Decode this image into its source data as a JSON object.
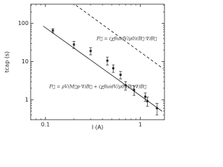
{
  "chart_data": {
    "type": "scatter",
    "x_label": "I (A)",
    "y_label": "tcap (s)",
    "xlim": [
      0.07,
      1.8
    ],
    "ylim": [
      0.3,
      320
    ],
    "xticks": [
      0.1,
      1
    ],
    "yticks": [
      1,
      10,
      100
    ],
    "log_x": true,
    "log_y": true,
    "series": [
      {
        "type": "scatter",
        "color": "#222222",
        "x": [
          0.12,
          0.2,
          0.3,
          0.45,
          0.52,
          0.62,
          0.7,
          0.86,
          1.13,
          1.19,
          1.5
        ],
        "values": [
          65,
          28,
          19,
          10.6,
          6.7,
          4.5,
          2.4,
          1.8,
          1.2,
          0.92,
          0.6
        ],
        "errors": [
          8,
          6,
          4,
          2.5,
          1.5,
          1,
          0.6,
          0.5,
          0.3,
          0.25,
          0.2
        ]
      },
      {
        "type": "line",
        "color": "#222222",
        "style": "solid",
        "x": [
          0.095,
          1.7
        ],
        "values": [
          85,
          0.5
        ]
      },
      {
        "type": "line",
        "color": "#222222",
        "style": "dashed",
        "x": [
          0.21,
          1.75
        ],
        "values": [
          300,
          6.5
        ]
      }
    ],
    "annotations": [
      {
        "text": "F⃗ = (χfluidV/μ0)(B⃗·∇)B⃗",
        "x": 0.72,
        "y": 40
      },
      {
        "text": "F⃗ = ρV(M⃗p·∇)B⃗ + (χfluidV/μ0)(B⃗·∇)B⃗",
        "x": 0.11,
        "y": 2.2
      }
    ]
  }
}
